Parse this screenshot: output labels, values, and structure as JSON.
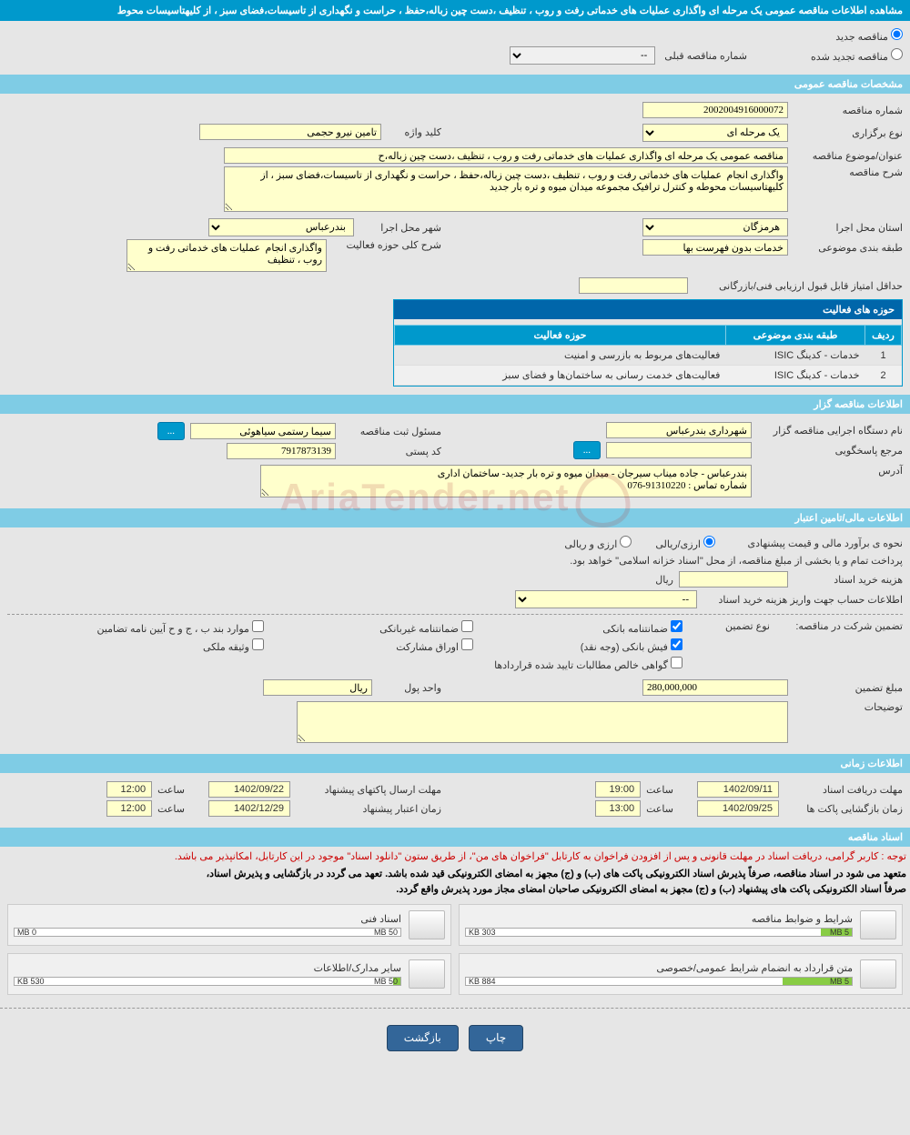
{
  "header": {
    "title": "مشاهده اطلاعات مناقصه عمومی یک مرحله ای واگذاری عملیات های خدماتی رفت و روب ، تنظیف ،دست چین زباله،حفظ ، حراست و نگهداری از تاسیسات،فضای سبز ، از کلیهتاسیسات محوط"
  },
  "topRadios": {
    "opt1": "مناقصه جدید",
    "opt2": "مناقصه تجدید شده",
    "prevTenderLabel": "شماره مناقصه قبلی",
    "prevTenderValue": "--"
  },
  "sections": {
    "general": "مشخصات مناقصه عمومی",
    "holder": "اطلاعات مناقصه گزار",
    "financial": "اطلاعات مالی/تامین اعتبار",
    "timing": "اطلاعات زمانی",
    "docs": "اسناد مناقصه"
  },
  "general": {
    "tenderNoLabel": "شماره مناقصه",
    "tenderNo": "2002004916000072",
    "typeLabel": "نوع برگزاری",
    "typeValue": "یک مرحله ای",
    "keywordLabel": "کلید واژه",
    "keywordValue": "تامین نیرو حجمی",
    "subjectLabel": "عنوان/موضوع مناقصه",
    "subjectValue": "مناقصه عمومی یک مرحله ای واگذاری عملیات های خدماتی رفت و روب ، تنظیف ،دست چین زباله،ح",
    "descLabel": "شرح مناقصه",
    "descValue": "واگذاری انجام  عملیات های خدماتی رفت و روب ، تنظیف ،دست چین زباله،حفظ ، حراست و نگهداری از تاسیسات،فضای سبز ، از کلیهتاسیسات محوطه و کنترل ترافیک مجموعه میدان میوه و تره بار جدید",
    "provinceLabel": "استان محل اجرا",
    "provinceValue": "هرمزگان",
    "cityLabel": "شهر محل اجرا",
    "cityValue": "بندرعباس",
    "classLabel": "طبقه بندی موضوعی",
    "classValue": "خدمات بدون فهرست بها",
    "scopeDescLabel": "شرح کلی حوزه فعالیت",
    "scopeDescValue": "واگذاری انجام  عملیات های خدماتی رفت و روب ، تنظیف",
    "minScoreLabel": "حداقل امتیاز قابل قبول ارزیابی فنی/بازرگانی",
    "minScoreValue": ""
  },
  "activities": {
    "title": "حوزه های فعالیت",
    "cols": {
      "row": "ردیف",
      "class": "طبقه بندی موضوعی",
      "scope": "حوزه فعالیت"
    },
    "rows": [
      {
        "n": "1",
        "class": "خدمات - کدینگ ISIC",
        "scope": "فعالیت‌های مربوط به بازرسی و امنیت"
      },
      {
        "n": "2",
        "class": "خدمات - کدینگ ISIC",
        "scope": "فعالیت‌های خدمت رسانی به ساختمان‌ها و فضای سبز"
      }
    ]
  },
  "holder": {
    "orgLabel": "نام دستگاه اجرایی مناقصه گزار",
    "orgValue": "شهرداری بندرعباس",
    "regRespLabel": "مسئول ثبت مناقصه",
    "regRespValue": "سیما رستمی سیاهوئی",
    "moreBtn": "...",
    "refLabel": "مرجع پاسخگویی",
    "refValue": "",
    "refBtn": "...",
    "postalLabel": "کد پستی",
    "postalValue": "7917873139",
    "addressLabel": "آدرس",
    "addressValue": "بندرعباس - جاده میناب سیرجان - میدان میوه و تره بار جدید- ساختمان اداری\nشماره تماس : 91310220-076"
  },
  "financial": {
    "estimateLabel": "نحوه ی برآورد مالی و قیمت پیشنهادی",
    "opt1": "ارزی/ریالی",
    "opt2": "ارزی و ریالی",
    "treasuryNote": "پرداخت تمام و یا بخشی از مبلغ مناقصه، از محل \"اسناد خزانه اسلامی\" خواهد بود.",
    "docCostLabel": "هزینه خرید اسناد",
    "docCostValue": "",
    "rial": "ریال",
    "accountInfoLabel": "اطلاعات حساب جهت واریز هزینه خرید اسناد",
    "accountInfoValue": "--",
    "guaranteeTitle": "تضمین شرکت در مناقصه:",
    "guaranteeTypeLabel": "نوع تضمین",
    "checks": {
      "c1": "ضمانتنامه بانکی",
      "c2": "ضمانتنامه غیربانکی",
      "c3": "موارد بند ب ، ج و ح آیین نامه تضامین",
      "c4": "فیش بانکی (وجه نقد)",
      "c5": "اوراق مشارکت",
      "c6": "وثیقه ملکی",
      "c7": "گواهی خالص مطالبات تایید شده قراردادها"
    },
    "amountLabel": "مبلغ تضمین",
    "amountValue": "280,000,000",
    "unitLabel": "واحد پول",
    "unitValue": "ریال",
    "notesLabel": "توضیحات"
  },
  "timing": {
    "receiveLabel": "مهلت دریافت اسناد",
    "receiveDate": "1402/09/11",
    "receiveTimeLabel": "ساعت",
    "receiveTime": "19:00",
    "sendLabel": "مهلت ارسال پاکتهای پیشنهاد",
    "sendDate": "1402/09/22",
    "sendTimeLabel": "ساعت",
    "sendTime": "12:00",
    "openLabel": "زمان بازگشایی پاکت ها",
    "openDate": "1402/09/25",
    "openTimeLabel": "ساعت",
    "openTime": "13:00",
    "validLabel": "زمان اعتبار پیشنهاد",
    "validDate": "1402/12/29",
    "validTimeLabel": "ساعت",
    "validTime": "12:00"
  },
  "docsNotice": {
    "red": "توجه : کاربر گرامی، دریافت اسناد در مهلت قانونی و پس از افزودن فراخوان به کارتابل \"فراخوان های من\"، از طریق ستون \"دانلود اسناد\" موجود در این کارتابل، امکانپذیر می باشد.",
    "black1": "متعهد می شود در اسناد مناقصه، صرفاً پذیرش اسناد الکترونیکی پاکت های (ب) و (ج) مجهز به امضای الکترونیکی قید شده باشد. تعهد می گردد در بازگشایی و پذیرش اسناد،",
    "black2": "صرفاً اسناد الکترونیکی پاکت های پیشنهاد (ب) و (ج) مجهز به امضای الکترونیکی صاحبان امضای مجاز مورد پذیرش واقع گردد."
  },
  "docs": [
    {
      "title": "شرایط و ضوابط مناقصه",
      "used": "303 KB",
      "total": "5 MB",
      "fill": 8
    },
    {
      "title": "اسناد فنی",
      "used": "0 MB",
      "total": "50 MB",
      "fill": 0
    },
    {
      "title": "متن قرارداد به انضمام شرایط عمومی/خصوصی",
      "used": "884 KB",
      "total": "5 MB",
      "fill": 18
    },
    {
      "title": "سایر مدارک/اطلاعات",
      "used": "530 KB",
      "total": "50 MB",
      "fill": 2
    }
  ],
  "footer": {
    "print": "چاپ",
    "back": "بازگشت"
  },
  "watermark": "AriaTender.net",
  "colors": {
    "headerBg": "#0099cc",
    "sectionBg": "#7fcce5",
    "yellowInput": "#ffffcc",
    "pageBg": "#e6e6e6"
  }
}
